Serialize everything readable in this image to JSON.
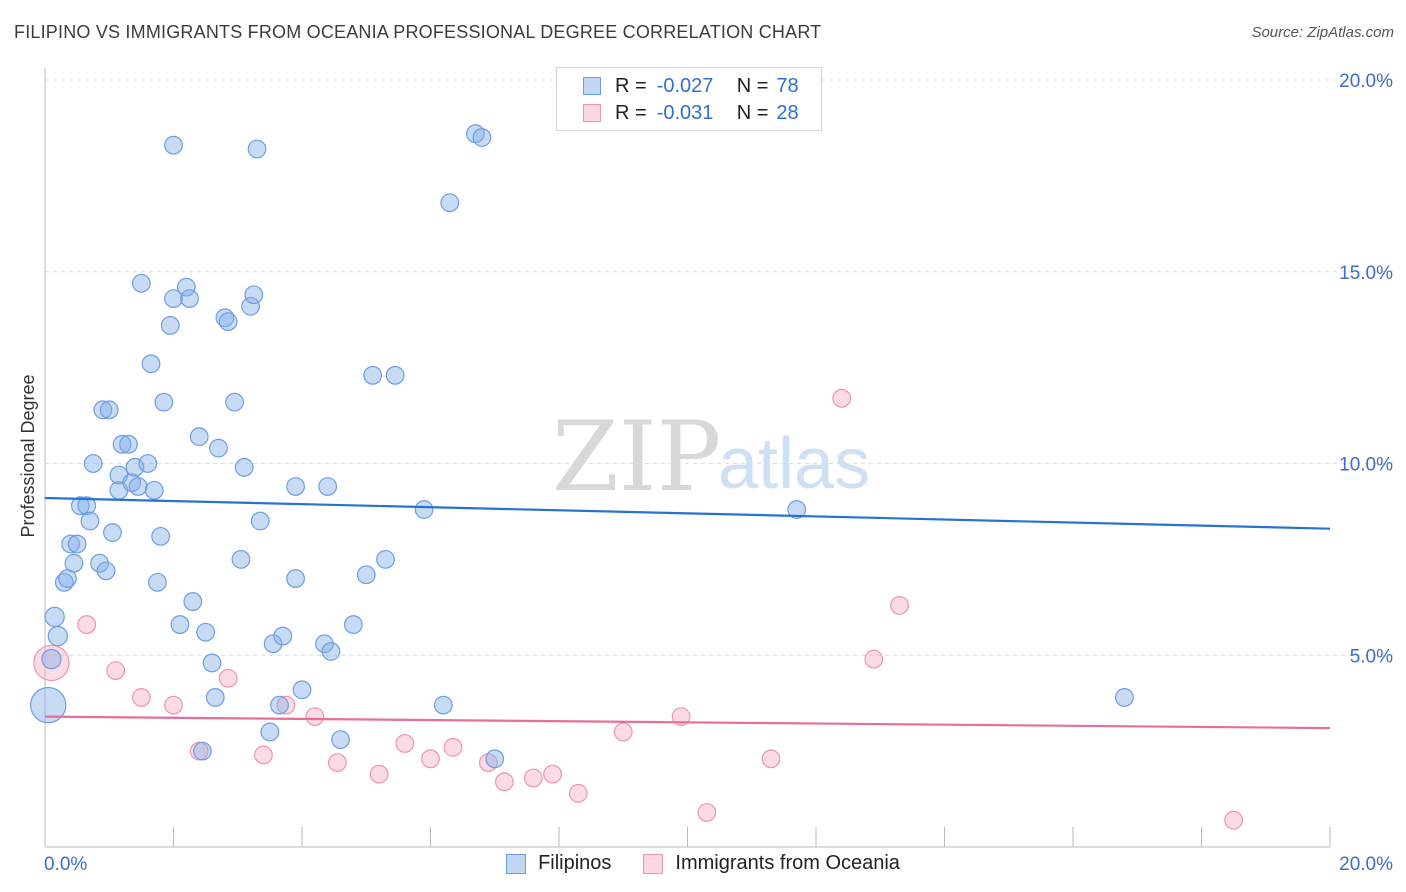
{
  "header": {
    "title": "FILIPINO VS IMMIGRANTS FROM OCEANIA PROFESSIONAL DEGREE CORRELATION CHART",
    "source": "Source: ZipAtlas.com"
  },
  "watermark": {
    "zip": "ZIP",
    "atlas": "atlas"
  },
  "legend": {
    "rows": [
      {
        "r_label": "R =",
        "r_value": "-0.027",
        "n_label": "N =",
        "n_value": "78",
        "color": "#85b0e8"
      },
      {
        "r_label": "R =",
        "r_value": "-0.031",
        "n_label": "N =",
        "n_value": "28",
        "color": "#f6b0c4"
      }
    ]
  },
  "bottom_legend": [
    {
      "label": "Filipinos",
      "color": "#85b0e8"
    },
    {
      "label": "Immigrants from Oceania",
      "color": "#f6b0c4"
    }
  ],
  "chart_data": {
    "type": "scatter",
    "title": "FILIPINO VS IMMIGRANTS FROM OCEANIA PROFESSIONAL DEGREE CORRELATION CHART",
    "xlabel": "",
    "ylabel": "Professional Degree",
    "xlim": [
      0,
      20
    ],
    "ylim": [
      0,
      20
    ],
    "x_tick_labels": [
      "0.0%",
      "20.0%"
    ],
    "y_ticks": [
      5,
      10,
      15,
      20
    ],
    "y_tick_labels": [
      "5.0%",
      "10.0%",
      "15.0%",
      "20.0%"
    ],
    "grid": true,
    "series": [
      {
        "name": "Filipinos",
        "color": "#85b0e8",
        "trend": {
          "x": [
            0,
            20
          ],
          "y": [
            9.1,
            8.3
          ]
        },
        "points": [
          [
            0.05,
            3.7,
            22
          ],
          [
            0.1,
            4.9,
            12
          ],
          [
            0.15,
            6.0,
            12
          ],
          [
            0.2,
            5.5,
            12
          ],
          [
            0.3,
            6.9,
            11
          ],
          [
            0.35,
            7.0,
            11
          ],
          [
            0.4,
            7.9,
            11
          ],
          [
            0.45,
            7.4,
            11
          ],
          [
            0.5,
            7.9,
            11
          ],
          [
            0.55,
            8.9,
            11
          ],
          [
            0.65,
            8.9,
            11
          ],
          [
            0.7,
            8.5,
            11
          ],
          [
            0.75,
            10.0,
            11
          ],
          [
            0.85,
            7.4,
            11
          ],
          [
            0.9,
            11.4,
            11
          ],
          [
            0.95,
            7.2,
            11
          ],
          [
            1.0,
            11.4,
            11
          ],
          [
            1.05,
            8.2,
            11
          ],
          [
            1.15,
            9.3,
            11
          ],
          [
            1.15,
            9.7,
            11
          ],
          [
            1.2,
            10.5,
            11
          ],
          [
            1.3,
            10.5,
            11
          ],
          [
            1.35,
            9.5,
            11
          ],
          [
            1.4,
            9.9,
            11
          ],
          [
            1.45,
            9.4,
            11
          ],
          [
            1.5,
            14.7,
            11
          ],
          [
            1.6,
            10.0,
            11
          ],
          [
            1.65,
            12.6,
            11
          ],
          [
            1.7,
            9.3,
            11
          ],
          [
            1.75,
            6.9,
            11
          ],
          [
            1.8,
            8.1,
            11
          ],
          [
            1.85,
            11.6,
            11
          ],
          [
            1.95,
            13.6,
            11
          ],
          [
            2.0,
            18.3,
            11
          ],
          [
            2.0,
            14.3,
            11
          ],
          [
            2.1,
            5.8,
            11
          ],
          [
            2.2,
            14.6,
            11
          ],
          [
            2.25,
            14.3,
            11
          ],
          [
            2.3,
            6.4,
            11
          ],
          [
            2.4,
            10.7,
            11
          ],
          [
            2.45,
            2.5,
            11
          ],
          [
            2.5,
            5.6,
            11
          ],
          [
            2.6,
            4.8,
            11
          ],
          [
            2.65,
            3.9,
            11
          ],
          [
            2.7,
            10.4,
            11
          ],
          [
            2.8,
            13.8,
            11
          ],
          [
            2.85,
            13.7,
            11
          ],
          [
            2.95,
            11.6,
            11
          ],
          [
            3.05,
            7.5,
            11
          ],
          [
            3.1,
            9.9,
            11
          ],
          [
            3.2,
            14.1,
            11
          ],
          [
            3.25,
            14.4,
            11
          ],
          [
            3.3,
            18.2,
            11
          ],
          [
            3.35,
            8.5,
            11
          ],
          [
            3.5,
            3.0,
            11
          ],
          [
            3.55,
            5.3,
            11
          ],
          [
            3.65,
            3.7,
            11
          ],
          [
            3.7,
            5.5,
            11
          ],
          [
            3.9,
            7.0,
            11
          ],
          [
            3.9,
            9.4,
            11
          ],
          [
            4.0,
            4.1,
            11
          ],
          [
            4.35,
            5.3,
            11
          ],
          [
            4.4,
            9.4,
            11
          ],
          [
            4.45,
            5.1,
            11
          ],
          [
            4.6,
            2.8,
            11
          ],
          [
            4.8,
            5.8,
            11
          ],
          [
            5.0,
            7.1,
            11
          ],
          [
            5.1,
            12.3,
            11
          ],
          [
            5.3,
            7.5,
            11
          ],
          [
            5.45,
            12.3,
            11
          ],
          [
            5.9,
            8.8,
            11
          ],
          [
            6.2,
            3.7,
            11
          ],
          [
            6.3,
            16.8,
            11
          ],
          [
            6.7,
            18.6,
            11
          ],
          [
            6.8,
            18.5,
            11
          ],
          [
            7.0,
            2.3,
            11
          ],
          [
            11.7,
            8.8,
            11
          ],
          [
            16.8,
            3.9,
            11
          ]
        ]
      },
      {
        "name": "Immigrants from Oceania",
        "color": "#f6b0c4",
        "trend": {
          "x": [
            0,
            20
          ],
          "y": [
            3.4,
            3.1
          ]
        },
        "points": [
          [
            0.1,
            4.8,
            22
          ],
          [
            0.65,
            5.8,
            11
          ],
          [
            1.1,
            4.6,
            11
          ],
          [
            1.5,
            3.9,
            11
          ],
          [
            2.0,
            3.7,
            11
          ],
          [
            2.4,
            2.5,
            11
          ],
          [
            2.85,
            4.4,
            11
          ],
          [
            3.4,
            2.4,
            11
          ],
          [
            3.75,
            3.7,
            11
          ],
          [
            4.2,
            3.4,
            11
          ],
          [
            4.55,
            2.2,
            11
          ],
          [
            5.2,
            1.9,
            11
          ],
          [
            5.6,
            2.7,
            11
          ],
          [
            6.0,
            2.3,
            11
          ],
          [
            6.35,
            2.6,
            11
          ],
          [
            6.9,
            2.2,
            11
          ],
          [
            7.15,
            1.7,
            11
          ],
          [
            7.6,
            1.8,
            11
          ],
          [
            7.9,
            1.9,
            11
          ],
          [
            8.3,
            1.4,
            11
          ],
          [
            9.0,
            3.0,
            11
          ],
          [
            9.9,
            3.4,
            11
          ],
          [
            10.3,
            0.9,
            11
          ],
          [
            11.3,
            2.3,
            11
          ],
          [
            12.4,
            11.7,
            11
          ],
          [
            12.9,
            4.9,
            11
          ],
          [
            13.3,
            6.3,
            11
          ],
          [
            18.5,
            0.7,
            11
          ]
        ]
      }
    ]
  }
}
